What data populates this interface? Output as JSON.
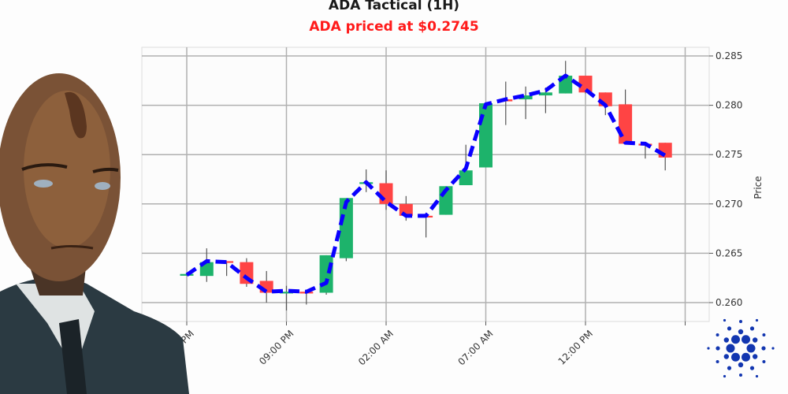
{
  "header": {
    "title": "ADA Tactical (1H)",
    "subtitle": "ADA priced at $0.2745",
    "subtitle_color": "#ff1a1a"
  },
  "colors": {
    "up": "#1db36b",
    "down": "#ff4444",
    "wick": "#555555",
    "line": "#0a00ff",
    "grid": "#b0b0b0",
    "logo": "#1236b0"
  },
  "chart_data": {
    "type": "candlestick",
    "title": "ADA Tactical (1H)",
    "subtitle": "ADA priced at $0.2745",
    "xlabel": "",
    "ylabel": "Price",
    "ylim": [
      0.259,
      0.2865
    ],
    "yticks": [
      0.26,
      0.265,
      0.27,
      0.275,
      0.28,
      0.285
    ],
    "ytick_labels": [
      "0.260",
      "0.265",
      "0.270",
      "0.275",
      "0.280",
      "0.285"
    ],
    "xtick_labels": [
      "04:00 PM",
      "09:00 PM",
      "02:00 AM",
      "07:00 AM",
      "12:00 PM"
    ],
    "xtick_candle_index": [
      0,
      5,
      10,
      15,
      20
    ],
    "grid": true,
    "y_axis_side": "right",
    "candles": [
      {
        "o": 0.2628,
        "h": 0.2629,
        "l": 0.2627,
        "c": 0.2629
      },
      {
        "o": 0.2627,
        "h": 0.2655,
        "l": 0.2621,
        "c": 0.2641
      },
      {
        "o": 0.2642,
        "h": 0.2642,
        "l": 0.2627,
        "c": 0.2641
      },
      {
        "o": 0.2641,
        "h": 0.2645,
        "l": 0.2616,
        "c": 0.2619
      },
      {
        "o": 0.2622,
        "h": 0.2632,
        "l": 0.26,
        "c": 0.261
      },
      {
        "o": 0.261,
        "h": 0.2617,
        "l": 0.2592,
        "c": 0.2611
      },
      {
        "o": 0.2611,
        "h": 0.2611,
        "l": 0.2598,
        "c": 0.261
      },
      {
        "o": 0.261,
        "h": 0.2648,
        "l": 0.2608,
        "c": 0.2648
      },
      {
        "o": 0.2645,
        "h": 0.2706,
        "l": 0.2642,
        "c": 0.2706
      },
      {
        "o": 0.2721,
        "h": 0.2735,
        "l": 0.2712,
        "c": 0.2722
      },
      {
        "o": 0.2721,
        "h": 0.2734,
        "l": 0.2694,
        "c": 0.27
      },
      {
        "o": 0.27,
        "h": 0.2708,
        "l": 0.2683,
        "c": 0.2688
      },
      {
        "o": 0.2688,
        "h": 0.2688,
        "l": 0.2666,
        "c": 0.2687
      },
      {
        "o": 0.2689,
        "h": 0.2718,
        "l": 0.2689,
        "c": 0.2718
      },
      {
        "o": 0.2719,
        "h": 0.276,
        "l": 0.2719,
        "c": 0.2734
      },
      {
        "o": 0.2737,
        "h": 0.2802,
        "l": 0.2737,
        "c": 0.2802
      },
      {
        "o": 0.2806,
        "h": 0.2824,
        "l": 0.278,
        "c": 0.2804
      },
      {
        "o": 0.2806,
        "h": 0.2819,
        "l": 0.2786,
        "c": 0.281
      },
      {
        "o": 0.281,
        "h": 0.2818,
        "l": 0.2792,
        "c": 0.2813
      },
      {
        "o": 0.2812,
        "h": 0.2845,
        "l": 0.2812,
        "c": 0.283
      },
      {
        "o": 0.283,
        "h": 0.283,
        "l": 0.2812,
        "c": 0.2813
      },
      {
        "o": 0.2813,
        "h": 0.2813,
        "l": 0.279,
        "c": 0.2799
      },
      {
        "o": 0.2801,
        "h": 0.2816,
        "l": 0.2761,
        "c": 0.2761
      },
      {
        "o": 0.2761,
        "h": 0.2763,
        "l": 0.2746,
        "c": 0.276
      },
      {
        "o": 0.2762,
        "h": 0.2762,
        "l": 0.2734,
        "c": 0.2747
      }
    ],
    "trend_line": {
      "style": "dashed",
      "values": [
        0.2628,
        0.2642,
        0.2641,
        0.2625,
        0.2611,
        0.2612,
        0.2611,
        0.262,
        0.2702,
        0.2722,
        0.2702,
        0.2688,
        0.2688,
        0.2714,
        0.2736,
        0.2801,
        0.2806,
        0.281,
        0.2815,
        0.283,
        0.2816,
        0.28,
        0.2762,
        0.2761,
        0.2749
      ]
    }
  },
  "decor": {
    "left_figure": "android-businessman-portrait",
    "logo": "cardano-logo"
  }
}
